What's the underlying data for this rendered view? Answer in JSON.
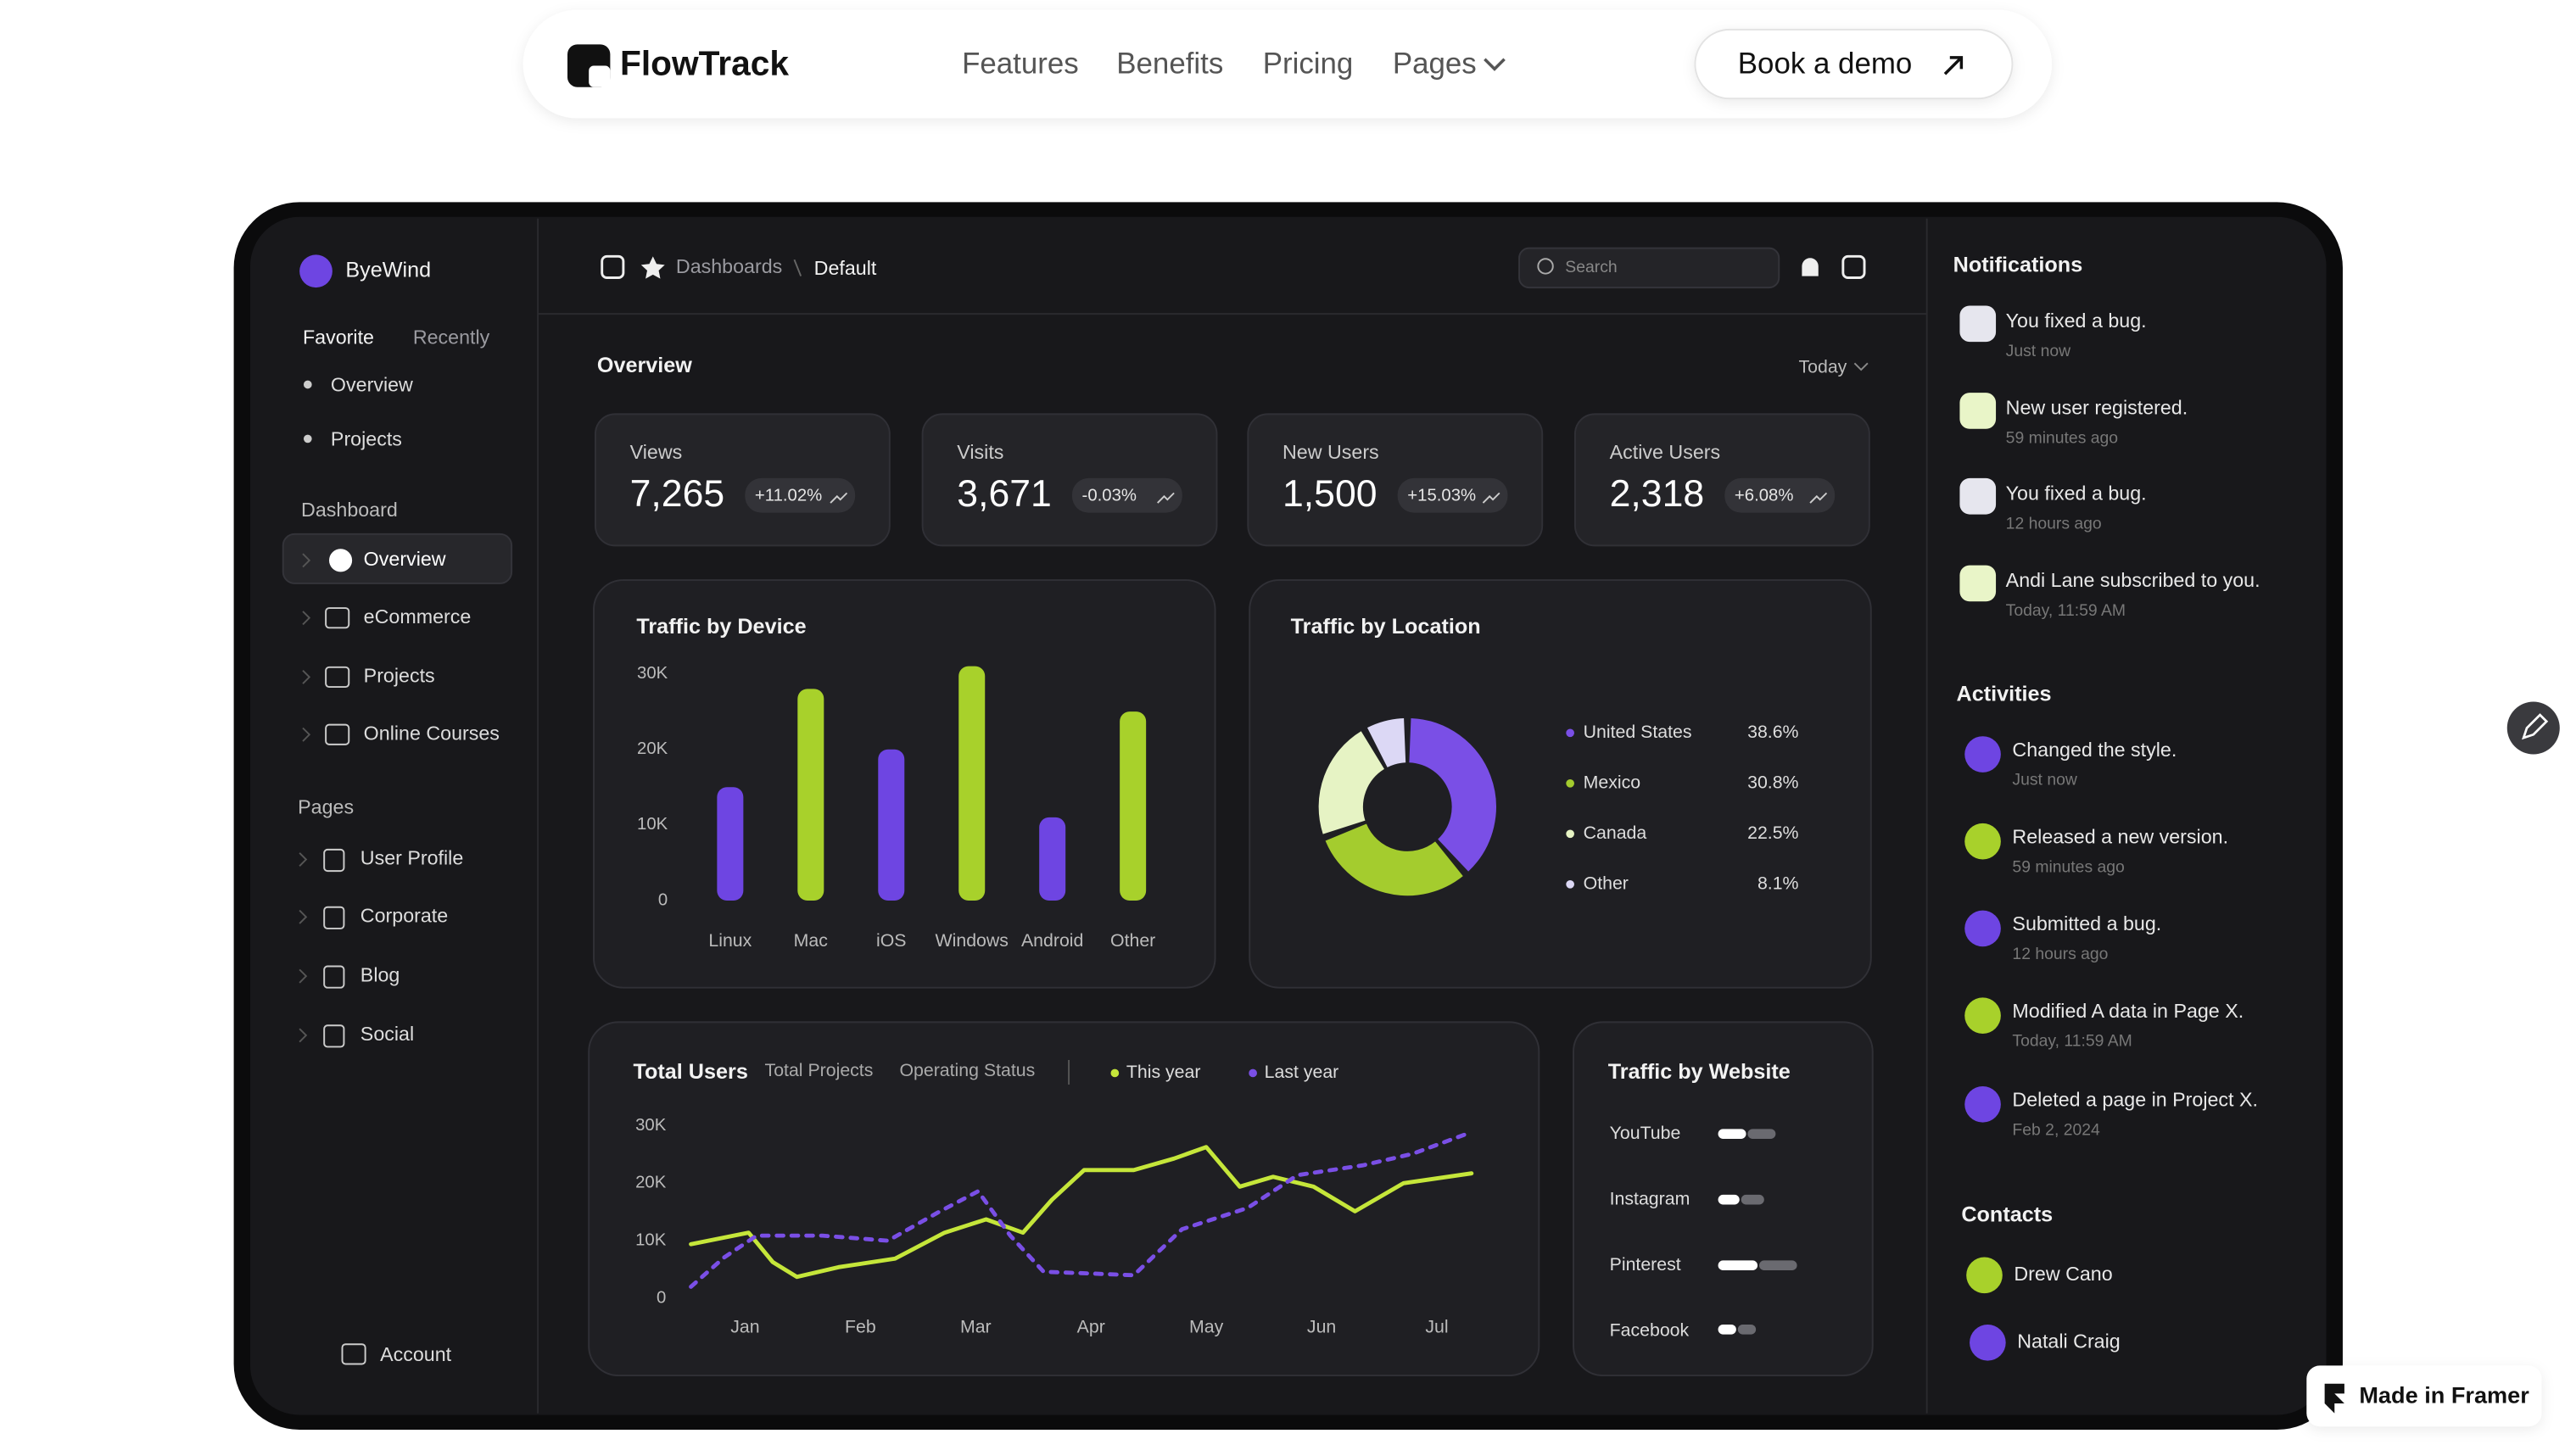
{
  "nav": {
    "brand": "FlowTrack",
    "links": [
      "Features",
      "Benefits",
      "Pricing",
      "Pages"
    ],
    "cta": "Book a demo"
  },
  "sidebar": {
    "workspace": "ByeWind",
    "tabs": [
      "Favorite",
      "Recently"
    ],
    "favorites": [
      "Overview",
      "Projects"
    ],
    "dashboard_heading": "Dashboard",
    "dashboard_items": [
      "Overview",
      "eCommerce",
      "Projects",
      "Online Courses"
    ],
    "pages_heading": "Pages",
    "pages_items": [
      "User Profile",
      "Corporate",
      "Blog",
      "Social"
    ],
    "account": "Account"
  },
  "header": {
    "breadcrumb": [
      "Dashboards",
      "Default"
    ],
    "search": "Search"
  },
  "overview": {
    "title": "Overview",
    "period": "Today",
    "stats": [
      {
        "label": "Views",
        "value": "7,265",
        "change": "+11.02%"
      },
      {
        "label": "Visits",
        "value": "3,671",
        "change": "-0.03%"
      },
      {
        "label": "New Users",
        "value": "1,500",
        "change": "+15.03%"
      },
      {
        "label": "Active Users",
        "value": "2,318",
        "change": "+6.08%"
      }
    ]
  },
  "chart_data": [
    {
      "type": "bar",
      "title": "Traffic by Device",
      "categories": [
        "Linux",
        "Mac",
        "iOS",
        "Windows",
        "Android",
        "Other"
      ],
      "values": [
        15000,
        28000,
        20000,
        31000,
        11000,
        25000
      ],
      "colors": [
        "#6e45e2",
        "#a8d12b",
        "#6e45e2",
        "#a8d12b",
        "#6e45e2",
        "#a8d12b"
      ],
      "ylim": [
        0,
        30000
      ],
      "yticks": [
        0,
        {
          "value": 10000,
          "label": "10K"
        },
        {
          "value": 20000,
          "label": "20K"
        },
        {
          "value": 30000,
          "label": "30K"
        }
      ],
      "grid": false
    },
    {
      "type": "pie",
      "title": "Traffic by Location",
      "categories": [
        "United States",
        "Mexico",
        "Canada",
        "Other"
      ],
      "values": [
        38.6,
        30.8,
        22.5,
        8.1
      ],
      "value_labels": [
        "38.6%",
        "30.8%",
        "22.5%",
        "8.1%"
      ],
      "colors": [
        "#7a4fe6",
        "#a4cc2e",
        "#e6f3c4",
        "#dcd8f5"
      ],
      "donut": true
    },
    {
      "type": "line",
      "title": "Total Users",
      "xlim": [
        0.5,
        7.5
      ],
      "xticks": [
        {
          "value": 1,
          "label": "Jan"
        },
        {
          "value": 2,
          "label": "Feb"
        },
        {
          "value": 3,
          "label": "Mar"
        },
        {
          "value": 4,
          "label": "Apr"
        },
        {
          "value": 5,
          "label": "May"
        },
        {
          "value": 6,
          "label": "Jun"
        },
        {
          "value": 7,
          "label": "Jul"
        }
      ],
      "ylim": [
        0,
        30000
      ],
      "yticks": [
        0,
        {
          "value": 10000,
          "label": "10K"
        },
        {
          "value": 20000,
          "label": "20K"
        },
        {
          "value": 30000,
          "label": "30K"
        }
      ],
      "series": [
        {
          "name": "This year",
          "color": "#c5e63a",
          "style": "solid",
          "x": [
            0.53,
            1.03,
            1.24,
            1.45,
            1.81,
            2.3,
            2.73,
            3.09,
            3.41,
            3.66,
            3.94,
            4.37,
            4.72,
            5.0,
            5.29,
            5.58,
            5.93,
            6.29,
            6.71,
            7.3
          ],
          "values": [
            9400,
            11400,
            6300,
            3700,
            5400,
            6900,
            11400,
            13700,
            11400,
            17100,
            22300,
            22300,
            24300,
            26300,
            19400,
            21100,
            19400,
            15100,
            20000,
            21700
          ]
        },
        {
          "name": "Last year",
          "color": "#7a4fe6",
          "style": "dashed",
          "x": [
            0.53,
            0.82,
            1.1,
            1.67,
            2.24,
            2.67,
            3.02,
            3.3,
            3.59,
            4.02,
            4.37,
            4.79,
            5.36,
            5.79,
            6.36,
            6.79,
            7.3
          ],
          "values": [
            2000,
            7100,
            10900,
            10900,
            10000,
            14900,
            18600,
            10900,
            4600,
            4300,
            4000,
            12000,
            15700,
            21400,
            23100,
            25100,
            28900
          ]
        }
      ],
      "legend": "top"
    }
  ],
  "line_tabs": [
    "Total Projects",
    "Operating Status"
  ],
  "website_card": {
    "title": "Traffic by Website",
    "sites": [
      "YouTube",
      "Instagram",
      "Pinterest",
      "Facebook"
    ]
  },
  "notifications": {
    "title": "Notifications",
    "items": [
      {
        "text": "You fixed a bug.",
        "time": "Just now"
      },
      {
        "text": "New user registered.",
        "time": "59 minutes ago"
      },
      {
        "text": "You fixed a bug.",
        "time": "12 hours ago"
      },
      {
        "text": "Andi Lane subscribed to you.",
        "time": "Today, 11:59 AM"
      }
    ]
  },
  "activities": {
    "title": "Activities",
    "items": [
      {
        "text": "Changed the style.",
        "time": "Just now"
      },
      {
        "text": "Released a new version.",
        "time": "59 minutes ago"
      },
      {
        "text": "Submitted a bug.",
        "time": "12 hours ago"
      },
      {
        "text": "Modified A data in Page X.",
        "time": "Today, 11:59 AM"
      },
      {
        "text": "Deleted a page in Project X.",
        "time": "Feb 2, 2024"
      }
    ]
  },
  "contacts": {
    "title": "Contacts",
    "items": [
      "Drew Cano",
      "Natali Craig"
    ]
  },
  "badge": "Made in Framer"
}
